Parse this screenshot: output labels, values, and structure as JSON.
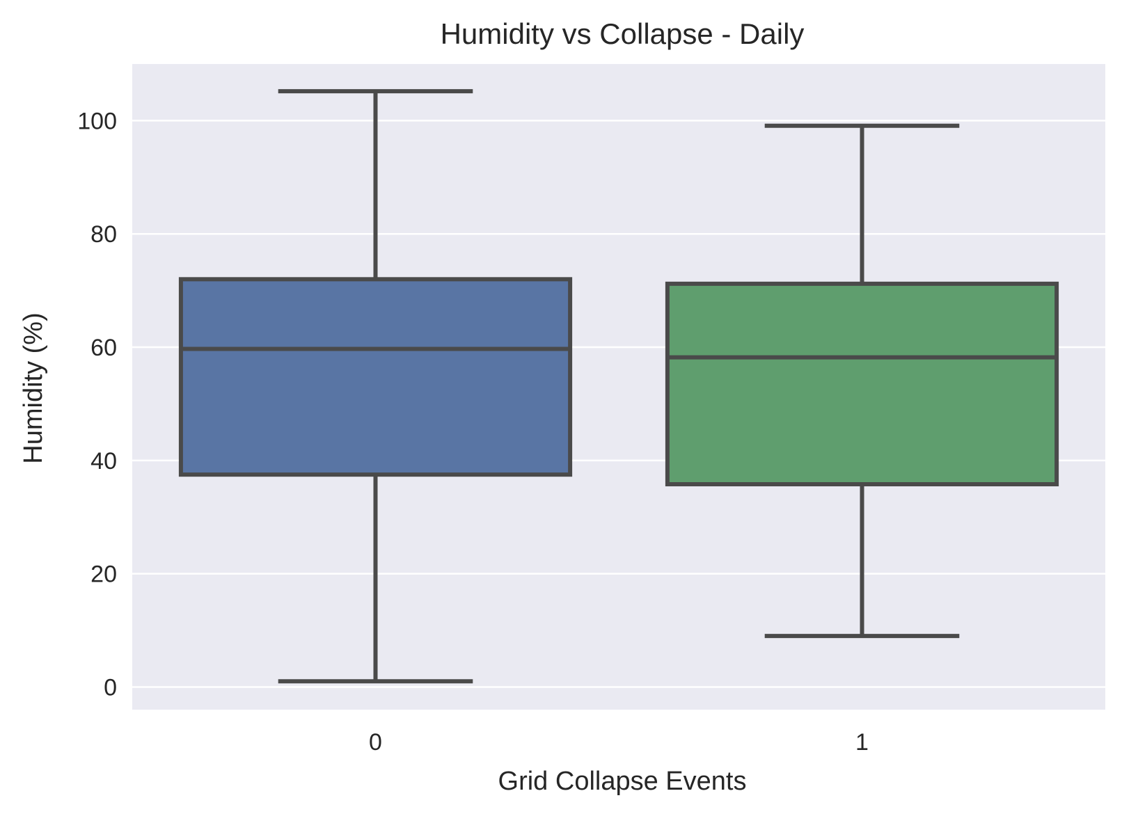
{
  "chart_data": {
    "type": "box",
    "title": "Humidity vs Collapse - Daily",
    "xlabel": "Grid Collapse Events",
    "ylabel": "Humidity (%)",
    "categories": [
      "0",
      "1"
    ],
    "ylim": [
      -4,
      110
    ],
    "yticks": [
      0,
      20,
      40,
      60,
      80,
      100
    ],
    "grid": true,
    "background": "#eaeaf2",
    "edge_color": "#4a4a4a",
    "boxes": [
      {
        "category": "0",
        "whisker_low": 1,
        "q1": 37.5,
        "median": 59.7,
        "q3": 72,
        "whisker_high": 105.2,
        "color": "#5975a4"
      },
      {
        "category": "1",
        "whisker_low": 9,
        "q1": 35.8,
        "median": 58.2,
        "q3": 71.2,
        "whisker_high": 99.1,
        "color": "#5f9e6e"
      }
    ]
  }
}
